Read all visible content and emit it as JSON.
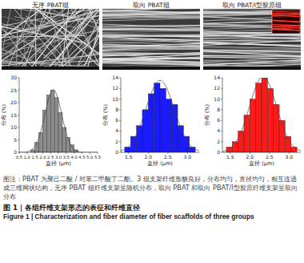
{
  "panels": [
    {
      "label": "无序 PBAT组"
    },
    {
      "label": "取向 PBAT组"
    },
    {
      "label": "取向 PBAT/Ⅰ型胶原组"
    }
  ],
  "chart_data": [
    {
      "type": "histogram",
      "x_label": "直径 (μm)",
      "y_label": "分布 (%)",
      "color": "#8c8c8c",
      "bins": [
        1.25,
        1.5,
        1.75,
        2.0,
        2.25,
        2.5,
        2.75,
        3.0,
        3.25,
        3.5,
        3.75,
        4.0,
        4.25
      ],
      "values": [
        1,
        4,
        8,
        17,
        23,
        25,
        22,
        16,
        10,
        6,
        3,
        1
      ],
      "xlim": [
        0.5,
        5.5
      ],
      "xticks": [
        0.5,
        {
          "value": 1,
          "label": "1.0"
        },
        1.5,
        {
          "value": 2,
          "label": "2.0"
        },
        2.5,
        {
          "value": 3,
          "label": "3.0"
        },
        3.5,
        {
          "value": 4,
          "label": "4.0"
        },
        4.5,
        {
          "value": 5,
          "label": "5.0"
        },
        5.5
      ],
      "ylim": [
        0,
        30
      ],
      "yticks": [
        0,
        5,
        10,
        15,
        20,
        25,
        30
      ]
    },
    {
      "type": "histogram",
      "x_label": "直径 (μm)",
      "y_label": "分布 (%)",
      "color": "#1a1aff",
      "bins": [
        1.4,
        1.55,
        1.7,
        1.85,
        2.0,
        2.15,
        2.3,
        2.45,
        2.6,
        2.75,
        2.9,
        3.05,
        3.2
      ],
      "values": [
        1,
        3,
        5,
        8,
        11,
        13,
        12,
        10,
        9,
        5,
        3,
        1
      ],
      "xlim": [
        1.3,
        3.3
      ],
      "xticks": [
        1.5,
        {
          "value": 2,
          "label": "2.0"
        },
        2.5,
        {
          "value": 3,
          "label": "3.0"
        }
      ],
      "ylim": [
        0,
        14
      ],
      "yticks": [
        0,
        2,
        4,
        6,
        8,
        10,
        12,
        14
      ]
    },
    {
      "type": "histogram",
      "x_label": "直径 (μm)",
      "y_label": "分布 (%)",
      "color": "#ff1a1a",
      "bins": [
        1.4,
        1.55,
        1.7,
        1.85,
        2.0,
        2.15,
        2.3,
        2.45,
        2.6,
        2.75,
        2.9,
        3.05,
        3.2
      ],
      "values": [
        1,
        2,
        4,
        7,
        10,
        13,
        14,
        12,
        9,
        6,
        3,
        1
      ],
      "xlim": [
        1.3,
        3.3
      ],
      "xticks": [
        1.5,
        {
          "value": 2,
          "label": "2.0"
        },
        2.5,
        {
          "value": 3,
          "label": "3.0"
        }
      ],
      "ylim": [
        0,
        14
      ],
      "yticks": [
        0,
        2,
        4,
        6,
        8,
        10,
        12,
        14
      ]
    }
  ],
  "caption": {
    "note": "图注：PBAT 为聚己二酸 / 对苯二甲酸丁二酯。3 组支架纤维形貌良好，分布均匀，直径均匀，相互连通成三维网状结构，无序 PBAT 组纤维支架呈随机分布，取向 PBAT 和取向 PBAT/Ⅰ型胶原纤维支架呈取向分布",
    "title_cn": "图 1 | 各组纤维支架形态的表征和纤维直径",
    "title_en": "Figure 1 | Characterization and fiber diameter of fiber scaffolds of three groups"
  }
}
